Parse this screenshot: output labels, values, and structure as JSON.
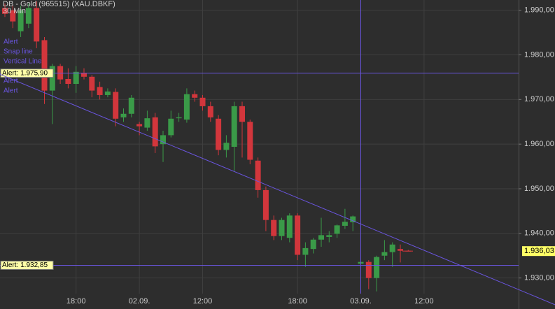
{
  "chart_data": {
    "type": "candlestick",
    "title": "DB - Gold (965515) (XAU.DBKF)",
    "subtitle": "30 Min",
    "categories": [
      null,
      null,
      null,
      null,
      null,
      null,
      null,
      null,
      null,
      "18:00",
      null,
      null,
      null,
      null,
      null,
      null,
      null,
      "02.09.",
      null,
      null,
      null,
      null,
      null,
      null,
      null,
      "12:00",
      null,
      null,
      null,
      null,
      null,
      null,
      null,
      null,
      null,
      null,
      null,
      "18:00",
      null,
      null,
      null,
      null,
      null,
      null,
      null,
      "03.09.",
      null,
      null,
      null,
      null,
      null,
      null,
      null,
      "12:00"
    ],
    "open": [
      1990.5,
      1990,
      1985.3,
      1987,
      1990.5,
      1983.3,
      1972,
      1977.5,
      1974.6,
      1973.5,
      1976,
      1975.1,
      1972.8,
      1971,
      1971.7,
      1966,
      1966.8,
      1964.5,
      1963.7,
      1966,
      1960,
      1962,
      1965.8,
      1965.5,
      1971.2,
      1970.4,
      1968.5,
      1965.7,
      1958.7,
      1959.4,
      1968.5,
      1965,
      1956.3,
      1949.7,
      1943,
      1939.4,
      1939,
      1944,
      1935.2,
      1936.5,
      1938.6,
      1939.2,
      1939.9,
      1941.7,
      1942.5,
      1933.2,
      1933.6,
      1930,
      1935,
      1935.8,
      1936.5,
      1936.1,
      null,
      null
    ],
    "high": [
      1991.5,
      1991,
      1991,
      1991.5,
      1992,
      1984,
      1978,
      1978,
      1977,
      1977.5,
      1977,
      1975.5,
      1974,
      1972.5,
      1972.5,
      1968,
      1971,
      1965,
      1967.5,
      1967,
      1963,
      1967.5,
      1967,
      1972.5,
      1972,
      1971,
      1969.5,
      1966.5,
      1962,
      1969.5,
      1969.5,
      1965.5,
      1957,
      1950.5,
      1944,
      1943.5,
      1944.5,
      1944.5,
      1938,
      1939,
      1943.5,
      1940.5,
      1942,
      1945.5,
      1944,
      1937.5,
      1934,
      1935,
      1938.5,
      1938,
      1937.5,
      1936.3,
      null,
      null
    ],
    "low": [
      1988.5,
      1986,
      1984,
      1986,
      1981.5,
      1969,
      1964.5,
      1973.5,
      1972.5,
      1971.5,
      1974.5,
      1970.5,
      1970,
      1970.5,
      1964,
      1965,
      1966,
      1962,
      1963,
      1958,
      1956,
      1961.5,
      1965,
      1964.8,
      1969.5,
      1967.5,
      1965,
      1957.5,
      1957,
      1954,
      1957,
      1955.5,
      1948,
      1940.5,
      1938.5,
      1938.5,
      1938,
      1934,
      1932.5,
      1935.5,
      1937,
      1938,
      1939,
      1941,
      1940.5,
      1929,
      1927.5,
      1927,
      1934,
      1932.5,
      1933.5,
      1936,
      null,
      null
    ],
    "close": [
      1989.2,
      1987.5,
      1990,
      1990.5,
      1983,
      1972,
      1977.5,
      1974.5,
      1973.5,
      1976.2,
      1975.1,
      1972,
      1971,
      1971.8,
      1965.7,
      1966.8,
      1970.4,
      1964,
      1965.8,
      1959.5,
      1962,
      1965.7,
      1966,
      1971.2,
      1970.4,
      1968.5,
      1966,
      1958.7,
      1960.3,
      1968.5,
      1965,
      1956.5,
      1949.7,
      1943,
      1939.4,
      1943,
      1944,
      1935.2,
      1936.7,
      1938.6,
      1939.6,
      1939.6,
      1941.8,
      1942.6,
      1943.8,
      1933.6,
      1930,
      1934.7,
      1935.8,
      1937.5,
      1936.1,
      1936.03,
      null,
      null
    ],
    "up_color": "#3a9a48",
    "down_color": "#d2363c",
    "ylim": [
      1926.5,
      1992.3
    ],
    "yticks": [
      {
        "value": 1930,
        "label": "1.930,00"
      },
      {
        "value": 1940,
        "label": "1.940,00"
      },
      {
        "value": 1950,
        "label": "1.950,00"
      },
      {
        "value": 1960,
        "label": "1.960,00"
      },
      {
        "value": 1970,
        "label": "1.970,00"
      },
      {
        "value": 1980,
        "label": "1.980,00"
      },
      {
        "value": 1990,
        "label": "1.990,00"
      }
    ],
    "grid": true,
    "objects": [
      "Alert",
      "Snap line",
      "Vertical Line",
      "Alert",
      "Alert"
    ],
    "alerts": [
      {
        "value": 1975.9,
        "label": "Alert: 1.975,90"
      },
      {
        "value": 1932.85,
        "label": "Alert: 1.932,85"
      }
    ],
    "trend_line": [
      [
        0,
        1975.2
      ],
      [
        53,
        1936.2
      ]
    ],
    "vertical_line_at": 45,
    "last_price": {
      "value": 1936.03,
      "label": "1.936,03"
    },
    "object_color": "#6a55e0"
  }
}
